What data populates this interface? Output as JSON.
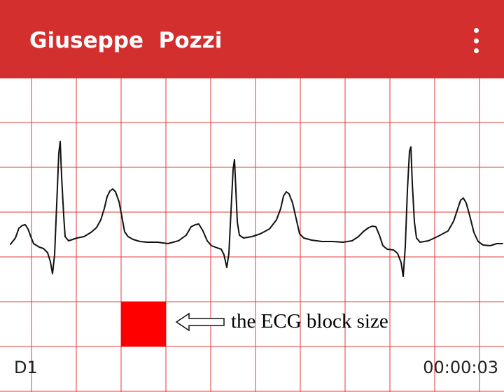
{
  "app_bar": {
    "title": "Giuseppe  Pozzi",
    "menu_icon": "more-vert-icon",
    "background_color": "#d32f2f"
  },
  "ecg": {
    "grid_color": "#e53935",
    "block_color": "#ff0000",
    "trace_color": "#111111",
    "annotation": {
      "text": "the ECG block size",
      "arrow_icon": "left-arrow-outline-icon"
    }
  },
  "footer": {
    "lead": "D1",
    "timer": "00:00:03"
  }
}
